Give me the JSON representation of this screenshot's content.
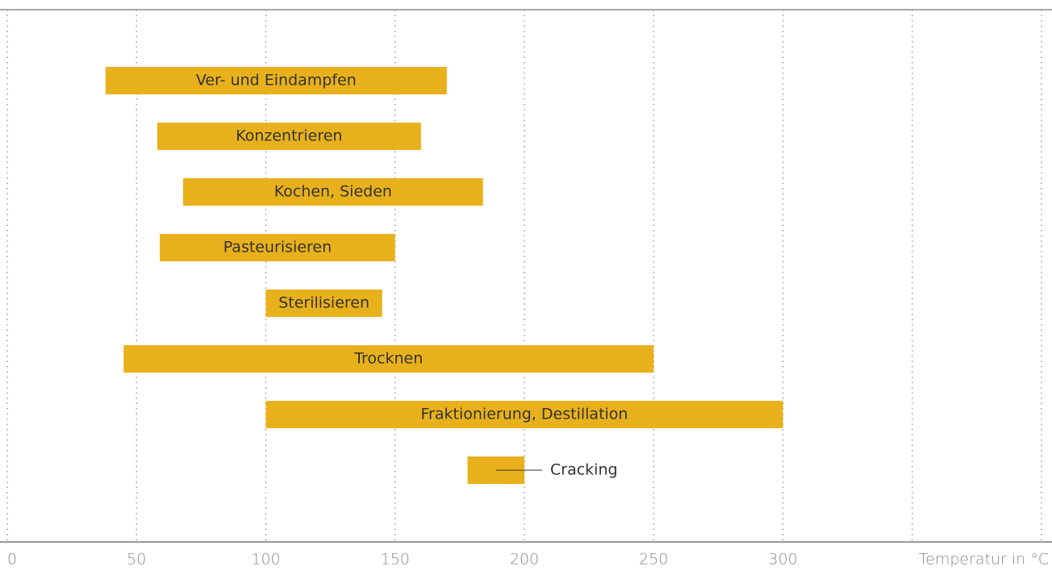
{
  "chart_data": {
    "type": "range-bar",
    "categories": [
      "Ver- und Eindampfen",
      "Konzentrieren",
      "Kochen, Sieden",
      "Pasteurisieren",
      "Sterilisieren",
      "Trocknen",
      "Fraktionierung, Destillation",
      "Cracking"
    ],
    "starts": [
      38,
      58,
      68,
      59,
      100,
      45,
      100,
      178
    ],
    "ends": [
      170,
      160,
      184,
      150,
      145,
      250,
      300,
      200
    ],
    "color": "#e8b11c",
    "xlabel": "Temperatur in °C",
    "xlim": [
      0,
      400
    ],
    "xticks": [
      0,
      50,
      100,
      150,
      200,
      250,
      300
    ],
    "xgrid": [
      0,
      50,
      100,
      150,
      200,
      250,
      300,
      350,
      400
    ]
  }
}
